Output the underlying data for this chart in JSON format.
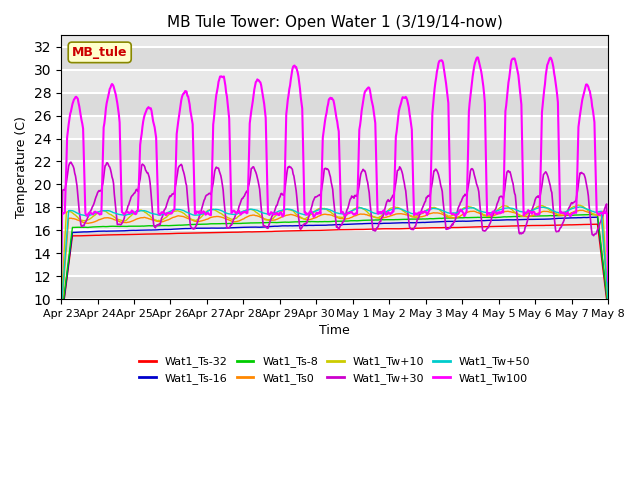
{
  "title": "MB Tule Tower: Open Water 1 (3/19/14-now)",
  "xlabel": "Time",
  "ylabel": "Temperature (C)",
  "ylim": [
    10,
    33
  ],
  "yticks": [
    10,
    12,
    14,
    16,
    18,
    20,
    22,
    24,
    26,
    28,
    30,
    32
  ],
  "legend_box_label": "MB_tule",
  "legend_box_color": "#cc0000",
  "legend_box_bg": "#ffffcc",
  "background_color": "#ffffff",
  "plot_bg_color": "#e8e8e8",
  "grid_color": "#ffffff",
  "series": [
    {
      "label": "Wat1_Ts-32",
      "color": "#ff0000"
    },
    {
      "label": "Wat1_Ts-16",
      "color": "#0000cc"
    },
    {
      "label": "Wat1_Ts-8",
      "color": "#00cc00"
    },
    {
      "label": "Wat1_Ts0",
      "color": "#ff8800"
    },
    {
      "label": "Wat1_Tw+10",
      "color": "#cccc00"
    },
    {
      "label": "Wat1_Tw+30",
      "color": "#cc00cc"
    },
    {
      "label": "Wat1_Tw+50",
      "color": "#00cccc"
    },
    {
      "label": "Wat1_Tw100",
      "color": "#ff00ff"
    }
  ],
  "x_start": 0,
  "x_end": 15,
  "x_tick_labels": [
    "Apr 23",
    "Apr 24",
    "Apr 25",
    "Apr 26",
    "Apr 27",
    "Apr 28",
    "Apr 29",
    "Apr 30",
    "May 1",
    "May 2",
    "May 3",
    "May 4",
    "May 5",
    "May 6",
    "May 7",
    "May 8"
  ],
  "x_tick_positions": [
    0,
    1,
    2,
    3,
    4,
    5,
    6,
    7,
    8,
    9,
    10,
    11,
    12,
    13,
    14,
    15
  ]
}
